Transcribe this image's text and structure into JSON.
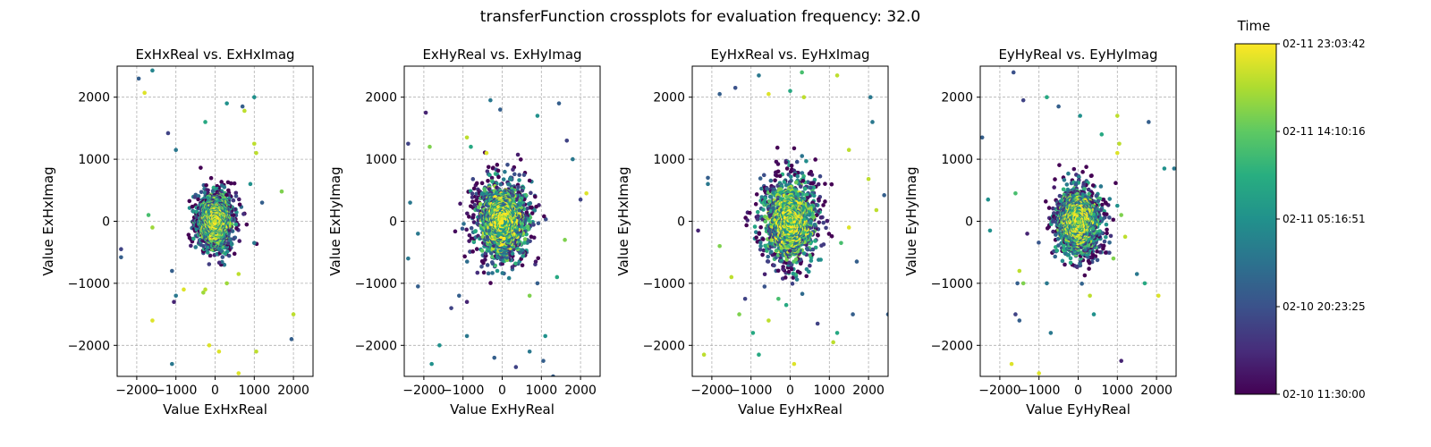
{
  "figure": {
    "title": "transferFunction crossplots for evaluation frequency: 32.0"
  },
  "colorbar": {
    "label": "Time",
    "colormap": "viridis",
    "ticks": [
      "02-10 11:30:00",
      "02-10 20:23:25",
      "02-11 05:16:51",
      "02-11 14:10:16",
      "02-11 23:03:42"
    ]
  },
  "chart_data": [
    {
      "type": "scatter",
      "title": "ExHxReal vs. ExHxImag",
      "xlabel": "Value ExHxReal",
      "ylabel": "Value ExHxImag",
      "xlim": [
        -2500,
        2500
      ],
      "ylim": [
        -2500,
        2500
      ],
      "xticks": [
        -2000,
        -1000,
        0,
        1000,
        2000
      ],
      "yticks": [
        -2000,
        -1000,
        0,
        1000,
        2000
      ],
      "grid": true,
      "spread": 230,
      "seed": 11,
      "points": [
        [
          -1600,
          2430,
          0.45
        ],
        [
          -1950,
          2300,
          0.3
        ],
        [
          -1800,
          2070,
          0.95
        ],
        [
          -1200,
          1420,
          0.2
        ],
        [
          -1000,
          1150,
          0.4
        ],
        [
          -250,
          1600,
          0.6
        ],
        [
          300,
          1900,
          0.5
        ],
        [
          1000,
          2000,
          0.5
        ],
        [
          700,
          1850,
          0.3
        ],
        [
          750,
          1780,
          0.9
        ],
        [
          1000,
          1250,
          0.9
        ],
        [
          1050,
          1100,
          0.9
        ],
        [
          1700,
          480,
          0.8
        ],
        [
          -1700,
          100,
          0.7
        ],
        [
          -1600,
          -100,
          0.85
        ],
        [
          -2400,
          -450,
          0.2
        ],
        [
          -2400,
          -580,
          0.3
        ],
        [
          -1100,
          -800,
          0.3
        ],
        [
          -1000,
          -1200,
          0.4
        ],
        [
          -800,
          -1100,
          0.95
        ],
        [
          -1600,
          -1600,
          0.95
        ],
        [
          -1050,
          -1300,
          0.1
        ],
        [
          -1100,
          -2300,
          0.4
        ],
        [
          -150,
          -2000,
          0.95
        ],
        [
          100,
          -2100,
          0.95
        ],
        [
          1050,
          -2100,
          0.9
        ],
        [
          2000,
          -1500,
          0.9
        ],
        [
          1950,
          -1900,
          0.3
        ],
        [
          600,
          -2450,
          0.95
        ],
        [
          -300,
          -1150,
          0.85
        ],
        [
          -250,
          -1100,
          0.9
        ],
        [
          300,
          -1000,
          0.85
        ],
        [
          600,
          -850,
          0.9
        ],
        [
          1000,
          -350,
          0.4
        ],
        [
          1200,
          300,
          0.3
        ],
        [
          900,
          600,
          0.5
        ]
      ]
    },
    {
      "type": "scatter",
      "title": "ExHyReal vs. ExHyImag",
      "xlabel": "Value ExHyReal",
      "ylabel": "Value ExHyImag",
      "xlim": [
        -2500,
        2500
      ],
      "ylim": [
        -2500,
        2500
      ],
      "xticks": [
        -2000,
        -1000,
        0,
        1000,
        2000
      ],
      "yticks": [
        -2000,
        -1000,
        0,
        1000,
        2000
      ],
      "grid": true,
      "spread": 330,
      "seed": 23,
      "points": [
        [
          -1950,
          1750,
          0.1
        ],
        [
          -1850,
          1200,
          0.8
        ],
        [
          -900,
          1350,
          0.9
        ],
        [
          -800,
          1200,
          0.6
        ],
        [
          -300,
          1950,
          0.4
        ],
        [
          -50,
          1800,
          0.3
        ],
        [
          900,
          1700,
          0.5
        ],
        [
          1450,
          1900,
          0.3
        ],
        [
          1650,
          1300,
          0.2
        ],
        [
          1800,
          1000,
          0.4
        ],
        [
          2150,
          450,
          0.95
        ],
        [
          2000,
          350,
          0.2
        ],
        [
          -2400,
          1250,
          0.2
        ],
        [
          -2350,
          300,
          0.4
        ],
        [
          -2150,
          -200,
          0.4
        ],
        [
          -2400,
          -600,
          0.4
        ],
        [
          -2150,
          -1050,
          0.3
        ],
        [
          -1600,
          -2000,
          0.5
        ],
        [
          -1800,
          -2300,
          0.5
        ],
        [
          -900,
          -1850,
          0.4
        ],
        [
          -200,
          -2200,
          0.3
        ],
        [
          350,
          -2350,
          0.2
        ],
        [
          700,
          -2100,
          0.4
        ],
        [
          1050,
          -2250,
          0.3
        ],
        [
          1300,
          -2500,
          0.3
        ],
        [
          1100,
          -1850,
          0.5
        ],
        [
          1400,
          -900,
          0.6
        ],
        [
          1600,
          -300,
          0.8
        ],
        [
          -1300,
          -1400,
          0.2
        ],
        [
          -1100,
          -1200,
          0.3
        ],
        [
          -900,
          -1300,
          0.1
        ],
        [
          700,
          -1200,
          0.8
        ],
        [
          900,
          -1000,
          0.3
        ],
        [
          -400,
          1100,
          0.95
        ]
      ]
    },
    {
      "type": "scatter",
      "title": "EyHxReal vs. EyHxImag",
      "xlabel": "Value EyHxReal",
      "ylabel": "Value EyHxImag",
      "xlim": [
        -2500,
        2500
      ],
      "ylim": [
        -2500,
        2500
      ],
      "xticks": [
        -2000,
        -1000,
        0,
        1000,
        2000
      ],
      "yticks": [
        -2000,
        -1000,
        0,
        1000,
        2000
      ],
      "grid": true,
      "spread": 350,
      "seed": 37,
      "points": [
        [
          -1800,
          2050,
          0.3
        ],
        [
          -1400,
          2150,
          0.25
        ],
        [
          -550,
          2050,
          0.95
        ],
        [
          0,
          2100,
          0.6
        ],
        [
          350,
          2000,
          0.9
        ],
        [
          -800,
          2350,
          0.4
        ],
        [
          300,
          2400,
          0.7
        ],
        [
          1200,
          2350,
          0.9
        ],
        [
          2050,
          2000,
          0.4
        ],
        [
          2100,
          1600,
          0.4
        ],
        [
          1500,
          1150,
          0.9
        ],
        [
          2000,
          680,
          0.9
        ],
        [
          2400,
          420,
          0.3
        ],
        [
          2200,
          180,
          0.9
        ],
        [
          -2100,
          700,
          0.3
        ],
        [
          -2100,
          600,
          0.4
        ],
        [
          -2350,
          -150,
          0.1
        ],
        [
          -1800,
          -400,
          0.8
        ],
        [
          -1500,
          -900,
          0.9
        ],
        [
          -1150,
          -1250,
          0.2
        ],
        [
          -1300,
          -1500,
          0.8
        ],
        [
          -2200,
          -2150,
          0.9
        ],
        [
          -950,
          -1800,
          0.6
        ],
        [
          -800,
          -2150,
          0.6
        ],
        [
          -550,
          -1600,
          0.9
        ],
        [
          -300,
          -1250,
          0.7
        ],
        [
          -100,
          -1350,
          0.6
        ],
        [
          100,
          -2300,
          0.95
        ],
        [
          700,
          -1650,
          0.2
        ],
        [
          1100,
          -1950,
          0.9
        ],
        [
          1200,
          -1800,
          0.6
        ],
        [
          1600,
          -1500,
          0.3
        ],
        [
          1700,
          -650,
          0.3
        ],
        [
          2500,
          -1500,
          0.3
        ],
        [
          1300,
          -350,
          0.7
        ],
        [
          1500,
          -100,
          0.95
        ]
      ]
    },
    {
      "type": "scatter",
      "title": "EyHyReal vs. EyHyImag",
      "xlabel": "Value EyHyReal",
      "ylabel": "Value EyHyImag",
      "xlim": [
        -2500,
        2500
      ],
      "ylim": [
        -2500,
        2500
      ],
      "xticks": [
        -2000,
        -1000,
        0,
        1000,
        2000
      ],
      "yticks": [
        -2000,
        -1000,
        0,
        1000,
        2000
      ],
      "grid": true,
      "spread": 290,
      "seed": 53,
      "points": [
        [
          -2450,
          1350,
          0.3
        ],
        [
          -2300,
          350,
          0.5
        ],
        [
          -2250,
          -150,
          0.5
        ],
        [
          -1650,
          2400,
          0.25
        ],
        [
          -1400,
          1950,
          0.2
        ],
        [
          -800,
          2000,
          0.6
        ],
        [
          -500,
          1850,
          0.3
        ],
        [
          50,
          1700,
          0.5
        ],
        [
          600,
          1400,
          0.6
        ],
        [
          1000,
          1700,
          0.9
        ],
        [
          1050,
          1250,
          0.9
        ],
        [
          1800,
          1600,
          0.3
        ],
        [
          2200,
          850,
          0.5
        ],
        [
          2450,
          850,
          0.4
        ],
        [
          1000,
          1100,
          0.95
        ],
        [
          1000,
          250,
          0.5
        ],
        [
          1100,
          100,
          0.8
        ],
        [
          -1600,
          450,
          0.7
        ],
        [
          -1300,
          -200,
          0.1
        ],
        [
          -1500,
          -800,
          0.9
        ],
        [
          -1550,
          -1000,
          0.3
        ],
        [
          -1600,
          -1500,
          0.2
        ],
        [
          -1500,
          -1600,
          0.3
        ],
        [
          -1700,
          -2300,
          0.95
        ],
        [
          -1000,
          -2450,
          0.95
        ],
        [
          -1400,
          -1000,
          0.8
        ],
        [
          -800,
          -1000,
          0.4
        ],
        [
          -700,
          -1800,
          0.4
        ],
        [
          300,
          -1200,
          0.9
        ],
        [
          1100,
          -2250,
          0.1
        ],
        [
          1500,
          -850,
          0.4
        ],
        [
          1700,
          -1000,
          0.6
        ],
        [
          2050,
          -1200,
          0.95
        ],
        [
          400,
          -1500,
          0.5
        ],
        [
          900,
          -600,
          0.8
        ],
        [
          1200,
          -250,
          0.9
        ]
      ]
    }
  ]
}
